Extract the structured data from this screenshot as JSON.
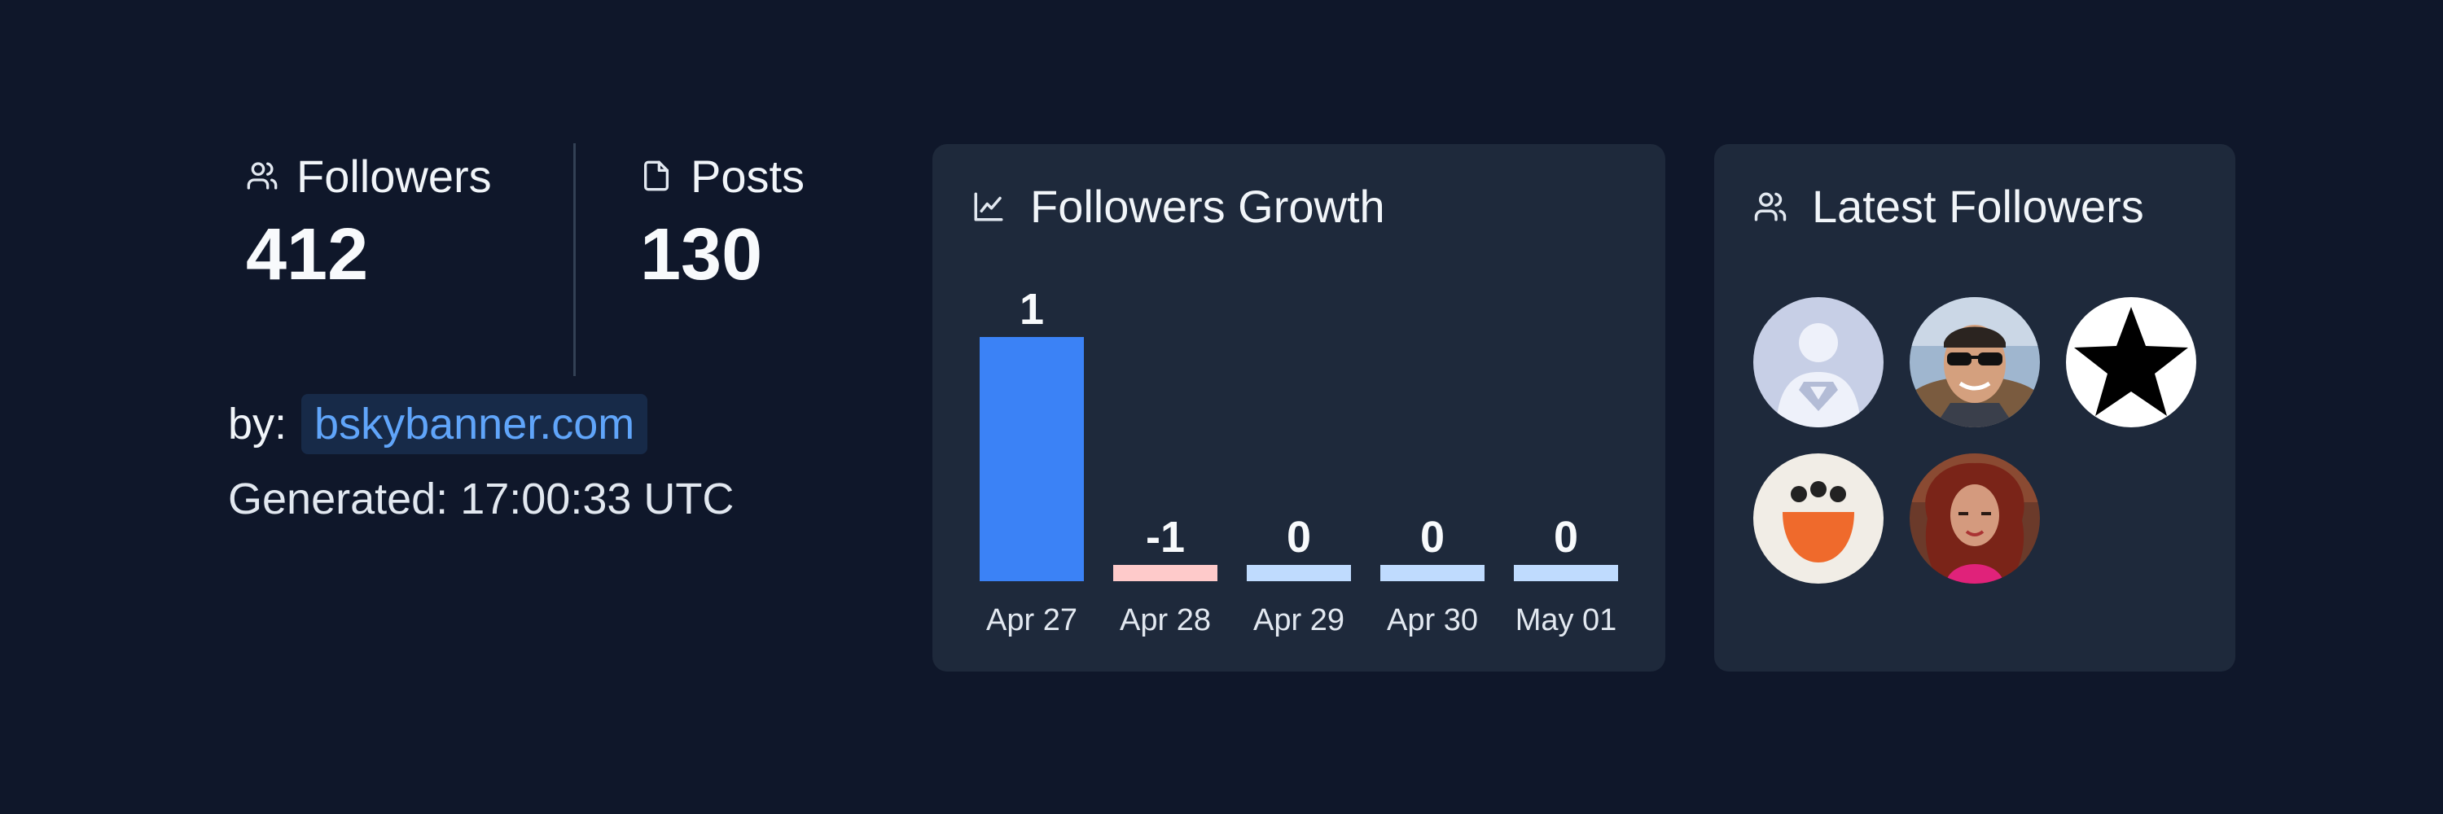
{
  "stats": {
    "followers": {
      "label": "Followers",
      "value": "412",
      "icon": "users-icon"
    },
    "posts": {
      "label": "Posts",
      "value": "130",
      "icon": "file-icon"
    }
  },
  "byline": {
    "label": "by:",
    "link": "bskybanner.com"
  },
  "generated": "Generated: 17:00:33 UTC",
  "growth": {
    "title": "Followers Growth",
    "icon": "line-chart-icon",
    "colors": {
      "positive": "#3b82f6",
      "negative": "#fecaca",
      "zero": "#bfdbfe"
    }
  },
  "chart_data": {
    "type": "bar",
    "title": "Followers Growth",
    "categories": [
      "Apr 27",
      "Apr 28",
      "Apr 29",
      "Apr 30",
      "May 01"
    ],
    "values": [
      1,
      -1,
      0,
      0,
      0
    ],
    "labels": [
      "1",
      "-1",
      "0",
      "0",
      "0"
    ],
    "xlabel": "",
    "ylabel": ""
  },
  "latest_followers": {
    "title": "Latest Followers",
    "icon": "users-icon",
    "avatars": [
      "superman-avatar",
      "sunglasses-man-avatar",
      "star-avatar",
      "smiley-avatar",
      "curly-hair-woman-avatar"
    ]
  }
}
